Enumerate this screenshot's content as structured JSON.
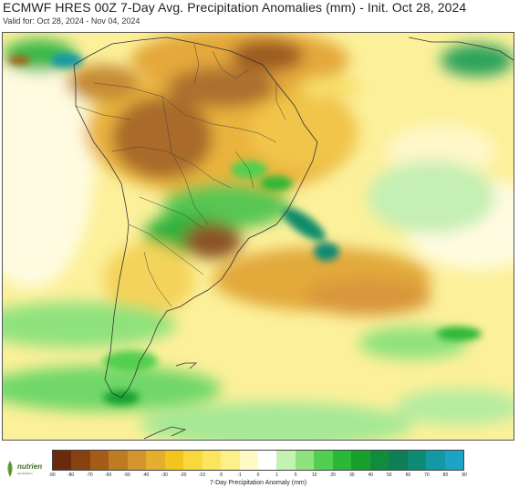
{
  "title": "ECMWF HRES 00Z 7-Day Avg. Precipitation Anomalies (mm) - Init. Oct 28, 2024",
  "subtitle": "Valid for: Oct 28, 2024 - Nov 04, 2024",
  "logo": {
    "name": "nutrien",
    "tagline": "Ag Solutions"
  },
  "colorbar": {
    "label": "7-Day Precipitation Anomaly (mm)",
    "ticks": [
      "-90",
      "-80",
      "-70",
      "-60",
      "-50",
      "-40",
      "-30",
      "-20",
      "-10",
      "-5",
      "-1",
      "0",
      "1",
      "5",
      "10",
      "20",
      "30",
      "40",
      "50",
      "60",
      "70",
      "80",
      "90"
    ],
    "colors": [
      "#6b2a0c",
      "#87420f",
      "#a55c19",
      "#bf7b22",
      "#d5952e",
      "#e6ae2e",
      "#f2c51c",
      "#f8d83a",
      "#fbe45e",
      "#fdf08a",
      "#fff9c6",
      "#ffffff",
      "#c4f2b2",
      "#8fe27d",
      "#52cf50",
      "#2ab836",
      "#17a02e",
      "#118c3d",
      "#0f7d55",
      "#0f8a74",
      "#1499a4",
      "#1ba4c6"
    ]
  },
  "map": {
    "region": "South America",
    "model": "ECMWF HRES 00Z",
    "anomaly_pattern": {
      "dry": [
        "northern Brazil",
        "central Brazil",
        "northern Argentina / Paraguay",
        "South Atlantic off southern Brazil"
      ],
      "wet": [
        "southeastern Brazil coast",
        "northwestern South America",
        "southern Chile",
        "southern oceans"
      ]
    }
  }
}
